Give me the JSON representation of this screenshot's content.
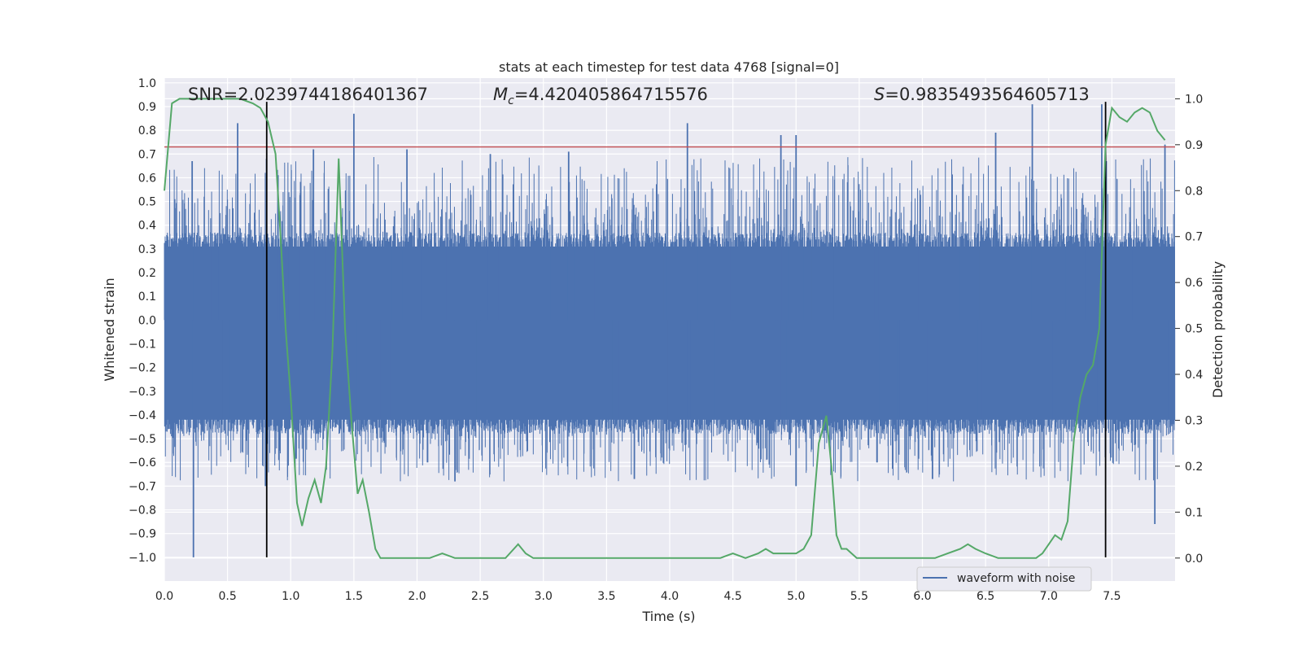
{
  "chart_data": {
    "type": "line",
    "title": "stats at each timestep for test data 4768 [signal=0]",
    "xlabel": "Time (s)",
    "ylabel": "Whitened strain",
    "y2label": "Detection probability",
    "xlim": [
      0.0,
      8.0
    ],
    "ylim": [
      -1.1,
      1.02
    ],
    "y2lim": [
      -0.05,
      1.045
    ],
    "x_ticks": [
      "0.0",
      "0.5",
      "1.0",
      "1.5",
      "2.0",
      "2.5",
      "3.0",
      "3.5",
      "4.0",
      "4.5",
      "5.0",
      "5.5",
      "6.0",
      "6.5",
      "7.0",
      "7.5"
    ],
    "y_ticks": [
      "1.0",
      "0.9",
      "0.8",
      "0.7",
      "0.6",
      "0.5",
      "0.4",
      "0.3",
      "0.2",
      "0.1",
      "0.0",
      "−0.1",
      "−0.2",
      "−0.3",
      "−0.4",
      "−0.5",
      "−0.6",
      "−0.7",
      "−0.8",
      "−0.9",
      "−1.0"
    ],
    "y2_ticks": [
      "1.0",
      "0.9",
      "0.8",
      "0.7",
      "0.6",
      "0.5",
      "0.4",
      "0.3",
      "0.2",
      "0.1",
      "0.0"
    ],
    "grid": true,
    "legend_position": "lower-right",
    "annotations": {
      "snr": "SNR=2.0239744186401367",
      "mc_label": "M",
      "mc_sub": "c",
      "mc_value": "=4.420405864715576",
      "s_label": "S",
      "s_value": "=0.9835493564605713"
    },
    "series": [
      {
        "name": "waveform with noise",
        "axis": "left",
        "color": "#4c72b0",
        "duration": 8.0,
        "peaks_high": [
          {
            "x": 0.22,
            "y": 0.67
          },
          {
            "x": 0.58,
            "y": 0.83
          },
          {
            "x": 1.18,
            "y": 0.72
          },
          {
            "x": 1.5,
            "y": 0.87
          },
          {
            "x": 1.92,
            "y": 0.72
          },
          {
            "x": 2.58,
            "y": 0.7
          },
          {
            "x": 3.2,
            "y": 0.71
          },
          {
            "x": 4.14,
            "y": 0.83
          },
          {
            "x": 4.88,
            "y": 0.78
          },
          {
            "x": 5.0,
            "y": 0.78
          },
          {
            "x": 6.58,
            "y": 0.79
          },
          {
            "x": 6.87,
            "y": 0.91
          },
          {
            "x": 7.42,
            "y": 0.91
          },
          {
            "x": 7.92,
            "y": 0.74
          }
        ],
        "peaks_low": [
          {
            "x": 0.23,
            "y": -1.0
          },
          {
            "x": 0.8,
            "y": -0.7
          },
          {
            "x": 2.3,
            "y": -0.68
          },
          {
            "x": 3.72,
            "y": -0.67
          },
          {
            "x": 5.0,
            "y": -0.7
          },
          {
            "x": 6.08,
            "y": -0.67
          },
          {
            "x": 7.84,
            "y": -0.86
          }
        ]
      },
      {
        "name": "",
        "axis": "right",
        "color": "#55a868",
        "x": [
          0.0,
          0.06,
          0.12,
          0.2,
          0.3,
          0.4,
          0.5,
          0.6,
          0.7,
          0.76,
          0.82,
          0.88,
          0.92,
          0.96,
          1.0,
          1.05,
          1.09,
          1.14,
          1.19,
          1.24,
          1.28,
          1.33,
          1.38,
          1.43,
          1.48,
          1.53,
          1.57,
          1.62,
          1.67,
          1.71,
          1.76,
          1.8,
          1.85,
          1.9,
          1.95,
          2.0,
          2.1,
          2.2,
          2.3,
          2.4,
          2.5,
          2.6,
          2.7,
          2.8,
          2.86,
          2.92,
          3.0,
          3.2,
          3.4,
          3.6,
          3.8,
          4.0,
          4.2,
          4.4,
          4.5,
          4.6,
          4.7,
          4.76,
          4.82,
          4.9,
          5.0,
          5.06,
          5.12,
          5.18,
          5.24,
          5.28,
          5.32,
          5.36,
          5.4,
          5.48,
          5.56,
          5.7,
          5.9,
          6.1,
          6.2,
          6.3,
          6.36,
          6.42,
          6.5,
          6.6,
          6.7,
          6.8,
          6.9,
          6.95,
          7.0,
          7.05,
          7.1,
          7.15,
          7.2,
          7.25,
          7.3,
          7.35,
          7.4,
          7.45,
          7.5,
          7.56,
          7.62,
          7.68,
          7.74,
          7.8,
          7.86,
          7.92
        ],
        "y": [
          0.8,
          0.99,
          1.0,
          1.0,
          1.0,
          1.0,
          1.0,
          1.0,
          0.99,
          0.98,
          0.95,
          0.88,
          0.7,
          0.5,
          0.35,
          0.12,
          0.07,
          0.13,
          0.17,
          0.12,
          0.2,
          0.45,
          0.87,
          0.5,
          0.3,
          0.14,
          0.17,
          0.1,
          0.02,
          0.0,
          0.0,
          0.0,
          0.0,
          0.0,
          0.0,
          0.0,
          0.0,
          0.01,
          0.0,
          0.0,
          0.0,
          0.0,
          0.0,
          0.03,
          0.01,
          0.0,
          0.0,
          0.0,
          0.0,
          0.0,
          0.0,
          0.0,
          0.0,
          0.0,
          0.01,
          0.0,
          0.01,
          0.02,
          0.01,
          0.01,
          0.01,
          0.02,
          0.05,
          0.25,
          0.31,
          0.2,
          0.05,
          0.02,
          0.02,
          0.0,
          0.0,
          0.0,
          0.0,
          0.0,
          0.01,
          0.02,
          0.03,
          0.02,
          0.01,
          0.0,
          0.0,
          0.0,
          0.0,
          0.01,
          0.03,
          0.05,
          0.04,
          0.08,
          0.26,
          0.35,
          0.4,
          0.42,
          0.5,
          0.9,
          0.98,
          0.96,
          0.95,
          0.97,
          0.98,
          0.97,
          0.93,
          0.91
        ]
      }
    ],
    "reference_lines": [
      {
        "axis": "left",
        "orientation": "horizontal",
        "y": 0.73,
        "color": "#c44e52"
      },
      {
        "axis": "left",
        "orientation": "vertical",
        "x": 0.81,
        "color": "#000000"
      },
      {
        "axis": "left",
        "orientation": "vertical",
        "x": 7.45,
        "color": "#000000"
      }
    ]
  }
}
